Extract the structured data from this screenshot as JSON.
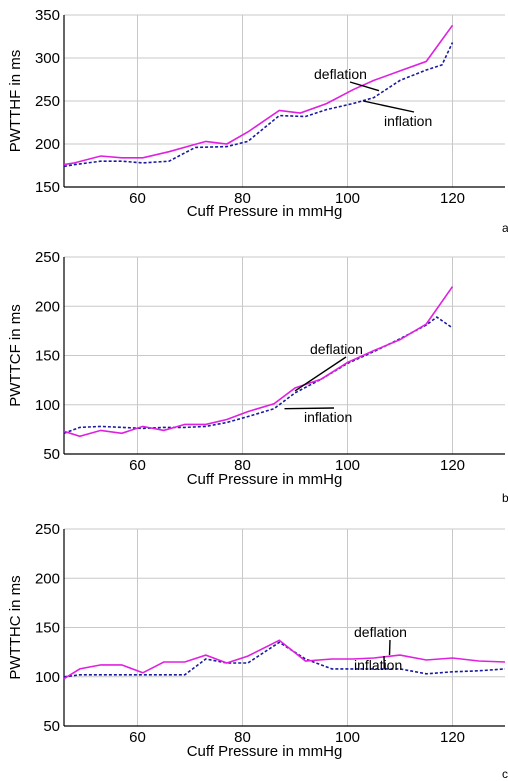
{
  "figure": {
    "colors": {
      "deflation": "#e020e0",
      "inflation": "#1a1aa0",
      "grid": "#c8c8c8",
      "axis": "#000000"
    }
  },
  "chart_data": [
    {
      "type": "line",
      "panel_letter": "a",
      "xlabel": "Cuff Pressure in mmHg",
      "ylabel": "PWTTHF in ms",
      "xlim": [
        46,
        130
      ],
      "ylim": [
        150,
        350
      ],
      "xticks": [
        60,
        80,
        100,
        120
      ],
      "yticks": [
        150,
        200,
        250,
        300,
        350
      ],
      "grid": true,
      "annotations": [
        {
          "text": "deflation",
          "series": "deflation",
          "anchor": [
            106,
            262
          ]
        },
        {
          "text": "inflation",
          "series": "inflation",
          "anchor": [
            103,
            250
          ]
        }
      ],
      "series": [
        {
          "name": "deflation",
          "style": "solid",
          "color": "#e020e0",
          "x": [
            46,
            48,
            53,
            57,
            61,
            66,
            73,
            77,
            81,
            87,
            91,
            96,
            101,
            105,
            110,
            115,
            120
          ],
          "y": [
            176,
            178,
            186,
            184,
            184,
            191,
            203,
            200,
            214,
            239,
            236,
            247,
            263,
            274,
            285,
            296,
            338
          ]
        },
        {
          "name": "inflation",
          "style": "dashed",
          "color": "#1a1aa0",
          "x": [
            46,
            48,
            53,
            57,
            61,
            66,
            71,
            77,
            81,
            87,
            92,
            96,
            101,
            105,
            110,
            115,
            118,
            120
          ],
          "y": [
            174,
            176,
            180,
            180,
            178,
            180,
            196,
            197,
            203,
            233,
            232,
            240,
            247,
            254,
            274,
            286,
            292,
            318
          ]
        }
      ]
    },
    {
      "type": "line",
      "panel_letter": "b",
      "xlabel": "Cuff Pressure in mmHg",
      "ylabel": "PWTTCF in ms",
      "xlim": [
        46,
        130
      ],
      "ylim": [
        50,
        250
      ],
      "xticks": [
        60,
        80,
        100,
        120
      ],
      "yticks": [
        50,
        100,
        150,
        200,
        250
      ],
      "grid": true,
      "annotations": [
        {
          "text": "deflation",
          "series": "deflation",
          "anchor": [
            90,
            114
          ]
        },
        {
          "text": "inflation",
          "series": "inflation",
          "anchor": [
            88,
            96
          ]
        }
      ],
      "series": [
        {
          "name": "deflation",
          "style": "solid",
          "color": "#e020e0",
          "x": [
            46,
            49,
            53,
            57,
            61,
            65,
            69,
            73,
            77,
            81,
            86,
            90,
            95,
            100,
            105,
            110,
            115,
            120
          ],
          "y": [
            73,
            68,
            74,
            71,
            78,
            74,
            80,
            80,
            85,
            93,
            101,
            117,
            126,
            143,
            155,
            166,
            182,
            220
          ]
        },
        {
          "name": "inflation",
          "style": "dashed",
          "color": "#1a1aa0",
          "x": [
            46,
            49,
            53,
            57,
            61,
            65,
            69,
            73,
            77,
            81,
            86,
            90,
            95,
            100,
            105,
            110,
            115,
            117,
            120
          ],
          "y": [
            71,
            77,
            78,
            77,
            76,
            77,
            77,
            78,
            82,
            88,
            96,
            112,
            126,
            142,
            154,
            167,
            181,
            189,
            178
          ]
        }
      ]
    },
    {
      "type": "line",
      "panel_letter": "c",
      "xlabel": "Cuff Pressure in mmHg",
      "ylabel": "PWTTHC in ms",
      "xlim": [
        46,
        130
      ],
      "ylim": [
        50,
        250
      ],
      "xticks": [
        60,
        80,
        100,
        120
      ],
      "yticks": [
        50,
        100,
        150,
        200,
        250
      ],
      "grid": true,
      "annotations": [
        {
          "text": "deflation",
          "series": "deflation",
          "anchor": [
            108,
            122
          ]
        },
        {
          "text": "inflation",
          "series": "inflation",
          "anchor": [
            107,
            108
          ]
        }
      ],
      "series": [
        {
          "name": "deflation",
          "style": "solid",
          "color": "#e020e0",
          "x": [
            46,
            49,
            53,
            57,
            61,
            65,
            69,
            73,
            77,
            81,
            87,
            92,
            97,
            101,
            105,
            110,
            115,
            120,
            125,
            130
          ],
          "y": [
            98,
            108,
            112,
            112,
            104,
            115,
            115,
            122,
            114,
            121,
            137,
            116,
            118,
            118,
            119,
            122,
            117,
            119,
            116,
            115
          ]
        },
        {
          "name": "inflation",
          "style": "dashed",
          "color": "#1a1aa0",
          "x": [
            46,
            49,
            53,
            57,
            61,
            65,
            69,
            73,
            77,
            81,
            87,
            92,
            97,
            101,
            105,
            110,
            115,
            120,
            125,
            130
          ],
          "y": [
            100,
            102,
            102,
            102,
            102,
            102,
            102,
            118,
            114,
            114,
            135,
            118,
            108,
            108,
            108,
            108,
            103,
            105,
            106,
            108
          ]
        }
      ]
    }
  ]
}
